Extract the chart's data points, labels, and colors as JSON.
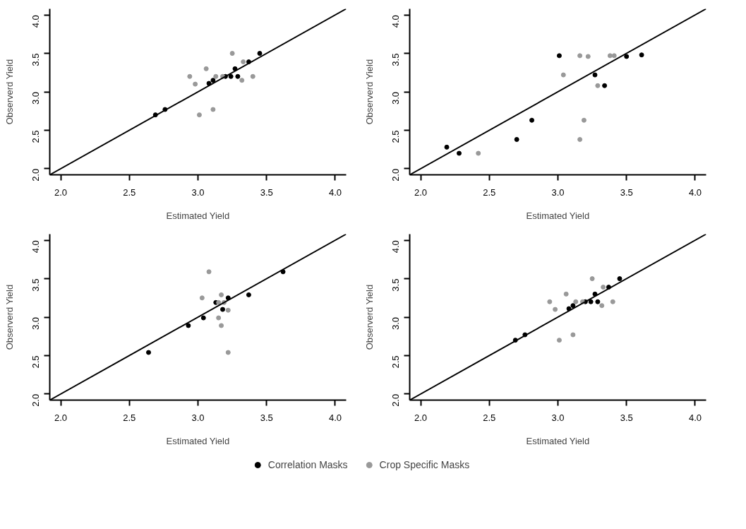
{
  "chart_data": [
    {
      "type": "scatter",
      "xlabel": "Estimated Yield",
      "ylabel": "Observerd Yield",
      "xlim": [
        1.92,
        4.08
      ],
      "ylim": [
        1.92,
        4.08
      ],
      "xticks": [
        {
          "value": 2,
          "label": "2.0"
        },
        {
          "value": 2.5,
          "label": "2.5"
        },
        {
          "value": 3,
          "label": "3.0"
        },
        {
          "value": 3.5,
          "label": "3.5"
        },
        {
          "value": 4,
          "label": "4.0"
        }
      ],
      "yticks": [
        {
          "value": 2,
          "label": "2.0"
        },
        {
          "value": 2.5,
          "label": "2.5"
        },
        {
          "value": 3,
          "label": "3.0"
        },
        {
          "value": 3.5,
          "label": "3.5"
        },
        {
          "value": 4,
          "label": "4.0"
        }
      ],
      "grid": false,
      "marker": "circle",
      "series": [
        {
          "color": "#000000",
          "x": [
            2.69,
            2.76,
            3.08,
            3.11,
            3.2,
            3.24,
            3.27,
            3.29,
            3.37,
            3.45
          ],
          "values": [
            2.7,
            2.77,
            3.11,
            3.15,
            3.2,
            3.2,
            3.3,
            3.2,
            3.39,
            3.5
          ]
        },
        {
          "color": "#999999",
          "x": [
            2.94,
            2.98,
            3.06,
            3.13,
            3.18,
            3.25,
            3.33,
            3.32,
            3.4,
            3.01,
            3.11
          ],
          "values": [
            3.2,
            3.1,
            3.3,
            3.2,
            3.2,
            3.5,
            3.39,
            3.15,
            3.2,
            2.7,
            2.77
          ]
        },
        {
          "type": "line",
          "marker": "none",
          "color": "#000000",
          "x": [
            1.92,
            4.08
          ],
          "values": [
            1.92,
            4.08
          ]
        }
      ]
    },
    {
      "type": "scatter",
      "xlabel": "Estimated Yield",
      "ylabel": "Observerd Yield",
      "xlim": [
        1.92,
        4.08
      ],
      "ylim": [
        1.92,
        4.08
      ],
      "xticks": [
        {
          "value": 2,
          "label": "2.0"
        },
        {
          "value": 2.5,
          "label": "2.5"
        },
        {
          "value": 3,
          "label": "3.0"
        },
        {
          "value": 3.5,
          "label": "3.5"
        },
        {
          "value": 4,
          "label": "4.0"
        }
      ],
      "yticks": [
        {
          "value": 2,
          "label": "2.0"
        },
        {
          "value": 2.5,
          "label": "2.5"
        },
        {
          "value": 3,
          "label": "3.0"
        },
        {
          "value": 3.5,
          "label": "3.5"
        },
        {
          "value": 4,
          "label": "4.0"
        }
      ],
      "grid": false,
      "marker": "circle",
      "series": [
        {
          "color": "#000000",
          "x": [
            2.19,
            2.28,
            2.7,
            2.81,
            3.01,
            3.27,
            3.34,
            3.5,
            3.61
          ],
          "values": [
            2.28,
            2.2,
            2.38,
            2.63,
            3.47,
            3.22,
            3.08,
            3.46,
            3.48
          ]
        },
        {
          "color": "#999999",
          "x": [
            2.42,
            3.04,
            3.16,
            3.22,
            3.38,
            3.41,
            3.29,
            3.19,
            3.16
          ],
          "values": [
            2.2,
            3.22,
            3.47,
            3.46,
            3.47,
            3.47,
            3.08,
            2.63,
            2.38
          ]
        },
        {
          "type": "line",
          "marker": "none",
          "color": "#000000",
          "x": [
            1.92,
            4.08
          ],
          "values": [
            1.92,
            4.08
          ]
        }
      ]
    },
    {
      "type": "scatter",
      "xlabel": "Estimated Yield",
      "ylabel": "Observerd Yield",
      "xlim": [
        1.92,
        4.08
      ],
      "ylim": [
        1.92,
        4.08
      ],
      "xticks": [
        {
          "value": 2,
          "label": "2.0"
        },
        {
          "value": 2.5,
          "label": "2.5"
        },
        {
          "value": 3,
          "label": "3.0"
        },
        {
          "value": 3.5,
          "label": "3.5"
        },
        {
          "value": 4,
          "label": "4.0"
        }
      ],
      "yticks": [
        {
          "value": 2,
          "label": "2.0"
        },
        {
          "value": 2.5,
          "label": "2.5"
        },
        {
          "value": 3,
          "label": "3.0"
        },
        {
          "value": 3.5,
          "label": "3.5"
        },
        {
          "value": 4,
          "label": "4.0"
        }
      ],
      "grid": false,
      "marker": "circle",
      "series": [
        {
          "color": "#000000",
          "x": [
            2.64,
            2.93,
            3.04,
            3.13,
            3.18,
            3.22,
            3.37,
            3.62
          ],
          "values": [
            2.54,
            2.89,
            2.99,
            3.19,
            3.1,
            3.25,
            3.29,
            3.59
          ]
        },
        {
          "color": "#999999",
          "x": [
            3.08,
            3.03,
            3.17,
            3.15,
            3.22,
            3.15,
            3.17,
            3.22,
            3.19
          ],
          "values": [
            3.59,
            3.25,
            3.29,
            3.19,
            3.09,
            2.99,
            2.89,
            2.54,
            3.19
          ]
        },
        {
          "type": "line",
          "marker": "none",
          "color": "#000000",
          "x": [
            1.92,
            4.08
          ],
          "values": [
            1.92,
            4.08
          ]
        }
      ]
    },
    {
      "type": "scatter",
      "xlabel": "Estimated Yield",
      "ylabel": "Observerd Yield",
      "xlim": [
        1.92,
        4.08
      ],
      "ylim": [
        1.92,
        4.08
      ],
      "xticks": [
        {
          "value": 2,
          "label": "2.0"
        },
        {
          "value": 2.5,
          "label": "2.5"
        },
        {
          "value": 3,
          "label": "3.0"
        },
        {
          "value": 3.5,
          "label": "3.5"
        },
        {
          "value": 4,
          "label": "4.0"
        }
      ],
      "yticks": [
        {
          "value": 2,
          "label": "2.0"
        },
        {
          "value": 2.5,
          "label": "2.5"
        },
        {
          "value": 3,
          "label": "3.0"
        },
        {
          "value": 3.5,
          "label": "3.5"
        },
        {
          "value": 4,
          "label": "4.0"
        }
      ],
      "grid": false,
      "marker": "circle",
      "legend": "bottom",
      "series": [
        {
          "name": "Correlation Masks",
          "color": "#000000",
          "x": [
            2.69,
            2.76,
            3.08,
            3.11,
            3.2,
            3.24,
            3.27,
            3.29,
            3.37,
            3.45
          ],
          "values": [
            2.7,
            2.77,
            3.11,
            3.15,
            3.2,
            3.2,
            3.3,
            3.2,
            3.39,
            3.5
          ]
        },
        {
          "name": "Crop Specific Masks",
          "color": "#999999",
          "x": [
            2.94,
            2.98,
            3.06,
            3.13,
            3.18,
            3.25,
            3.33,
            3.32,
            3.4,
            3.01,
            3.11
          ],
          "values": [
            3.2,
            3.1,
            3.3,
            3.2,
            3.2,
            3.5,
            3.39,
            3.15,
            3.2,
            2.7,
            2.77
          ]
        },
        {
          "type": "line",
          "marker": "none",
          "color": "#000000",
          "x": [
            1.92,
            4.08
          ],
          "values": [
            1.92,
            4.08
          ]
        }
      ]
    }
  ]
}
